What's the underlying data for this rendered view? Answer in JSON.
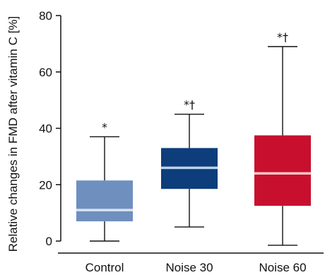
{
  "chart_data": {
    "type": "box",
    "ylabel": "Relative changes in FMD after vitamin C [%]",
    "xlabel": "",
    "ylim": [
      0,
      80
    ],
    "yticks": [
      0,
      20,
      40,
      60,
      80
    ],
    "y_tick_labels": [
      "0",
      "20",
      "40",
      "60",
      "80"
    ],
    "grid": false,
    "categories": [
      "Control",
      "Noise 30",
      "Noise 60"
    ],
    "boxes": [
      {
        "category": "Control",
        "min": 0,
        "q1": 7,
        "median": 11,
        "q3": 21.5,
        "max": 37,
        "fill": "#6f8fbf",
        "median_color": "#d9e4f2",
        "annotation": "*"
      },
      {
        "category": "Noise 30",
        "min": 5,
        "q1": 18.5,
        "median": 26,
        "q3": 33,
        "max": 45,
        "fill": "#0d3d7a",
        "median_color": "#bfd2ea",
        "annotation": "*†"
      },
      {
        "category": "Noise 60",
        "min": -1.5,
        "q1": 12.5,
        "median": 24,
        "q3": 37.5,
        "max": 69,
        "fill": "#c8102e",
        "median_color": "#f7c3c3",
        "annotation": "*†"
      }
    ]
  }
}
